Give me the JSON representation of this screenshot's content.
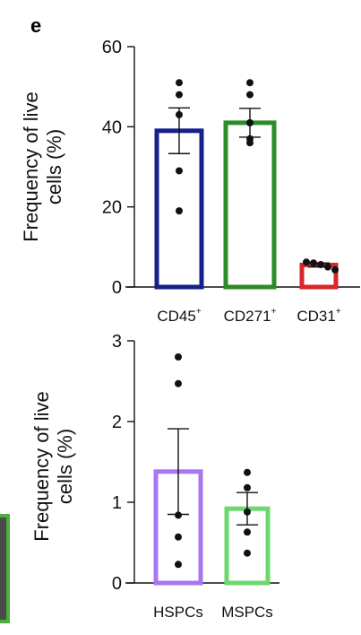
{
  "panel_letter": "e",
  "charts": [
    {
      "ylabel_lines": [
        "Frequency of live",
        "cells (%)"
      ],
      "yticks": [
        "0",
        "20",
        "40",
        "60"
      ],
      "cat_labels": [
        {
          "main": "CD45",
          "sup": "+"
        },
        {
          "main": "CD271",
          "sup": "+"
        },
        {
          "main": "CD31",
          "sup": "+"
        }
      ]
    },
    {
      "ylabel_lines": [
        "Frequency of live",
        "cells (%)"
      ],
      "yticks": [
        "0",
        "1",
        "2",
        "3"
      ],
      "cat_labels": [
        {
          "main": "HSPCs",
          "sup": ""
        },
        {
          "main": "MSPCs",
          "sup": ""
        }
      ]
    }
  ],
  "colors": {
    "cd45": "#15208a",
    "cd271": "#2e8b2a",
    "cd31": "#d8262a",
    "hspc": "#a876f0",
    "mspc": "#6dd86d",
    "edge_green": "#4caf3c"
  },
  "chart_data": [
    {
      "type": "bar",
      "categories": [
        "CD45+",
        "CD271+",
        "CD31+"
      ],
      "values": [
        39,
        41,
        5.5
      ],
      "error": [
        5.7,
        3.6,
        0.5
      ],
      "points": [
        [
          51,
          48,
          43,
          29,
          19
        ],
        [
          51,
          48,
          41,
          37,
          36
        ],
        [
          6.2,
          6.0,
          5.6,
          5.0,
          4.3
        ]
      ],
      "xlabel": "",
      "ylabel": "Frequency of live cells (%)",
      "ylim": [
        0,
        60
      ],
      "yticks": [
        0,
        20,
        40,
        60
      ],
      "grid": false
    },
    {
      "type": "bar",
      "categories": [
        "HSPCs",
        "MSPCs"
      ],
      "values": [
        1.38,
        0.92
      ],
      "error": [
        0.53,
        0.2
      ],
      "points": [
        [
          2.8,
          2.47,
          0.84,
          0.57,
          0.23
        ],
        [
          1.37,
          1.18,
          0.88,
          0.63,
          0.37
        ]
      ],
      "xlabel": "",
      "ylabel": "Frequency of live cells (%)",
      "ylim": [
        0,
        3
      ],
      "yticks": [
        0,
        1,
        2,
        3
      ],
      "grid": false
    }
  ]
}
